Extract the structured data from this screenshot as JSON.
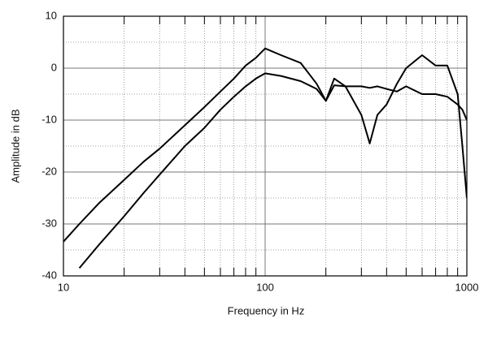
{
  "chart_data": {
    "type": "line",
    "x_label": "Frequency in Hz",
    "y_label": "Amplitude in dB",
    "x": [
      10,
      12,
      15,
      20,
      25,
      30,
      40,
      50,
      60,
      70,
      80,
      90,
      100,
      120,
      150,
      180,
      200,
      220,
      250,
      300,
      330,
      360,
      400,
      450,
      500,
      600,
      700,
      800,
      900,
      950,
      1000
    ],
    "series": [
      {
        "color": "#000000",
        "values": [
          -33.4,
          -30,
          -26,
          -21.5,
          -18,
          -15.5,
          -11,
          -7.5,
          -4.5,
          -2,
          0.5,
          2,
          3.8,
          2.5,
          1,
          -3,
          -6.3,
          -2,
          -3.5,
          -9,
          -14.5,
          -9,
          -7,
          -3,
          0,
          2.5,
          0.5,
          0.5,
          -5,
          -15,
          -25
        ]
      },
      {
        "color": "#000000",
        "values": [
          null,
          -38.5,
          -34,
          -28.5,
          -24,
          -20.5,
          -15,
          -11.5,
          -8,
          -5.5,
          -3.5,
          -2,
          -1,
          -1.5,
          -2.5,
          -4,
          -6.3,
          -3.3,
          -3.5,
          -3.5,
          -3.8,
          -3.5,
          -4,
          -4.5,
          -3.5,
          -5,
          -5,
          -5.5,
          -7,
          -8,
          -10
        ]
      }
    ],
    "xlim": [
      10,
      1000
    ],
    "xticks": [
      10,
      100,
      1000
    ],
    "xlog": true,
    "ylim": [
      -40,
      10
    ],
    "yticks": [
      -40,
      -30,
      -20,
      -10,
      0,
      10
    ],
    "grid": true,
    "minor_grid": true
  }
}
